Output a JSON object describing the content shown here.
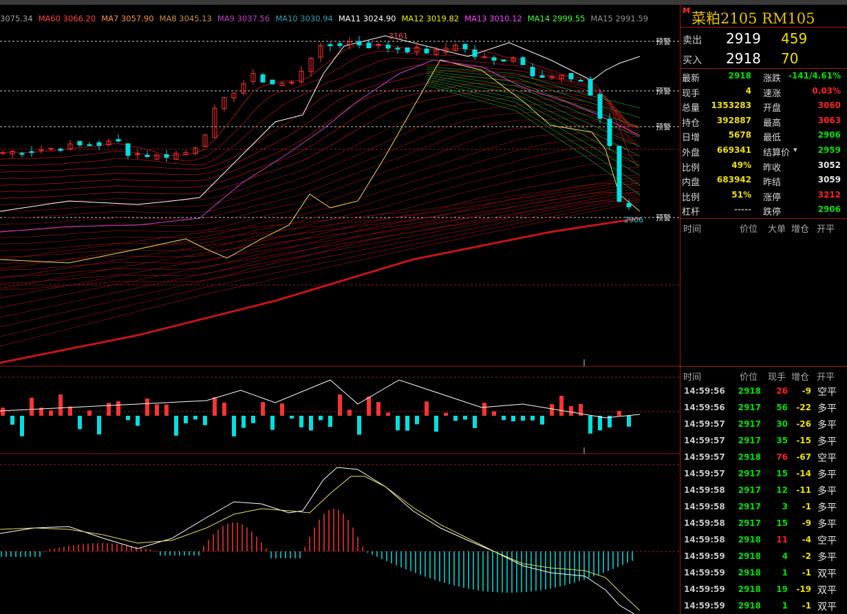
{
  "colors": {
    "up": "#ff3333",
    "down": "#00e0e0",
    "grid": "#a01818",
    "gold": "#e8c200",
    "green": "#00e000",
    "red": "#ff2020",
    "yellow": "#f0e000",
    "white": "#ffffff"
  },
  "ma_legend": [
    {
      "label": "3075.34",
      "color": "#a0a0a0"
    },
    {
      "label": "MA60 3066.20",
      "color": "#ff4040"
    },
    {
      "label": "MA7 3057.90",
      "color": "#ff8c40"
    },
    {
      "label": "MA8 3045.13",
      "color": "#c89040"
    },
    {
      "label": "MA9 3037.56",
      "color": "#c040c0"
    },
    {
      "label": "MA10 3030.94",
      "color": "#30a0b0"
    },
    {
      "label": "MA11 3024.90",
      "color": "#ffffff"
    },
    {
      "label": "MA12 3019.82",
      "color": "#f0f000"
    },
    {
      "label": "MA13 3010.12",
      "color": "#ff40ff"
    },
    {
      "label": "MA14 2999.55",
      "color": "#40ff40"
    },
    {
      "label": "MA15 2991.59",
      "color": "#909090"
    }
  ],
  "price_chart": {
    "high_label": "3161",
    "last_label": "2906",
    "alert_label": "预警"
  },
  "quote": {
    "m_badge": "M",
    "instrument": "菜粕2105  RM105",
    "sell_label": "卖出",
    "sell_price": "2919",
    "sell_volume": "459",
    "buy_label": "买入",
    "buy_price": "2918",
    "buy_volume": "70"
  },
  "stats": [
    {
      "l1": "最新",
      "v1": "2918",
      "c1": "#00e000",
      "l2": "涨跌",
      "v2": "-141/4.61%",
      "c2": "#00e000"
    },
    {
      "l1": "现手",
      "v1": "4",
      "c1": "#f0e000",
      "l2": "速涨",
      "v2": "0.03%",
      "c2": "#ff2020"
    },
    {
      "l1": "总量",
      "v1": "1353283",
      "c1": "#f0e000",
      "l2": "开盘",
      "v2": "3060",
      "c2": "#ff2020"
    },
    {
      "l1": "持仓",
      "v1": "392887",
      "c1": "#f0e000",
      "l2": "最高",
      "v2": "3063",
      "c2": "#ff2020"
    },
    {
      "l1": "日增",
      "v1": "5678",
      "c1": "#f0e000",
      "l2": "最低",
      "v2": "2906",
      "c2": "#00e000"
    },
    {
      "l1": "外盘",
      "v1": "669341",
      "c1": "#f0e000",
      "l2": "结算价",
      "v2": "2959",
      "c2": "#00e000"
    },
    {
      "l1": "比例",
      "v1": "49%",
      "c1": "#f0e000",
      "l2": "昨收",
      "v2": "3052",
      "c2": "#e8e8e8"
    },
    {
      "l1": "内盘",
      "v1": "683942",
      "c1": "#f0e000",
      "l2": "昨结",
      "v2": "3059",
      "c2": "#e8e8e8"
    },
    {
      "l1": "比例",
      "v1": "51%",
      "c1": "#f0e000",
      "l2": "涨停",
      "v2": "3212",
      "c2": "#ff2020"
    },
    {
      "l1": "杠杆",
      "v1": "-----",
      "c1": "#a0a0a0",
      "l2": "跌停",
      "v2": "2906",
      "c2": "#00e000"
    }
  ],
  "big_order_header": {
    "time": "时间",
    "price": "价位",
    "big": "大单",
    "chg": "增仓",
    "open": "开平"
  },
  "tick_header": {
    "time": "时间",
    "price": "价位",
    "vol": "现手",
    "chg": "增仓",
    "open": "开平"
  },
  "ticks": [
    {
      "time": "14:59:56",
      "price": "2918",
      "vol": "26",
      "chg": "-9",
      "type": "空平"
    },
    {
      "time": "14:59:56",
      "price": "2917",
      "vol": "56",
      "chg": "-22",
      "type": "多平"
    },
    {
      "time": "14:59:57",
      "price": "2917",
      "vol": "30",
      "chg": "-26",
      "type": "多平"
    },
    {
      "time": "14:59:57",
      "price": "2917",
      "vol": "35",
      "chg": "-15",
      "type": "多平"
    },
    {
      "time": "14:59:57",
      "price": "2918",
      "vol": "76",
      "chg": "-67",
      "type": "空平"
    },
    {
      "time": "14:59:57",
      "price": "2917",
      "vol": "15",
      "chg": "-14",
      "type": "多平"
    },
    {
      "time": "14:59:58",
      "price": "2917",
      "vol": "12",
      "chg": "-11",
      "type": "多平"
    },
    {
      "time": "14:59:58",
      "price": "2917",
      "vol": "3",
      "chg": "-1",
      "type": "多平"
    },
    {
      "time": "14:59:58",
      "price": "2917",
      "vol": "15",
      "chg": "-9",
      "type": "多平"
    },
    {
      "time": "14:59:58",
      "price": "2918",
      "vol": "11",
      "chg": "-4",
      "type": "空平"
    },
    {
      "time": "14:59:59",
      "price": "2918",
      "vol": "4",
      "chg": "-2",
      "type": "多平"
    },
    {
      "time": "14:59:59",
      "price": "2918",
      "vol": "1",
      "chg": "-1",
      "type": "双平"
    },
    {
      "time": "14:59:59",
      "price": "2918",
      "vol": "19",
      "chg": "-19",
      "type": "双平"
    },
    {
      "time": "14:59:59",
      "price": "2918",
      "vol": "1",
      "chg": "-1",
      "type": "双平"
    }
  ]
}
